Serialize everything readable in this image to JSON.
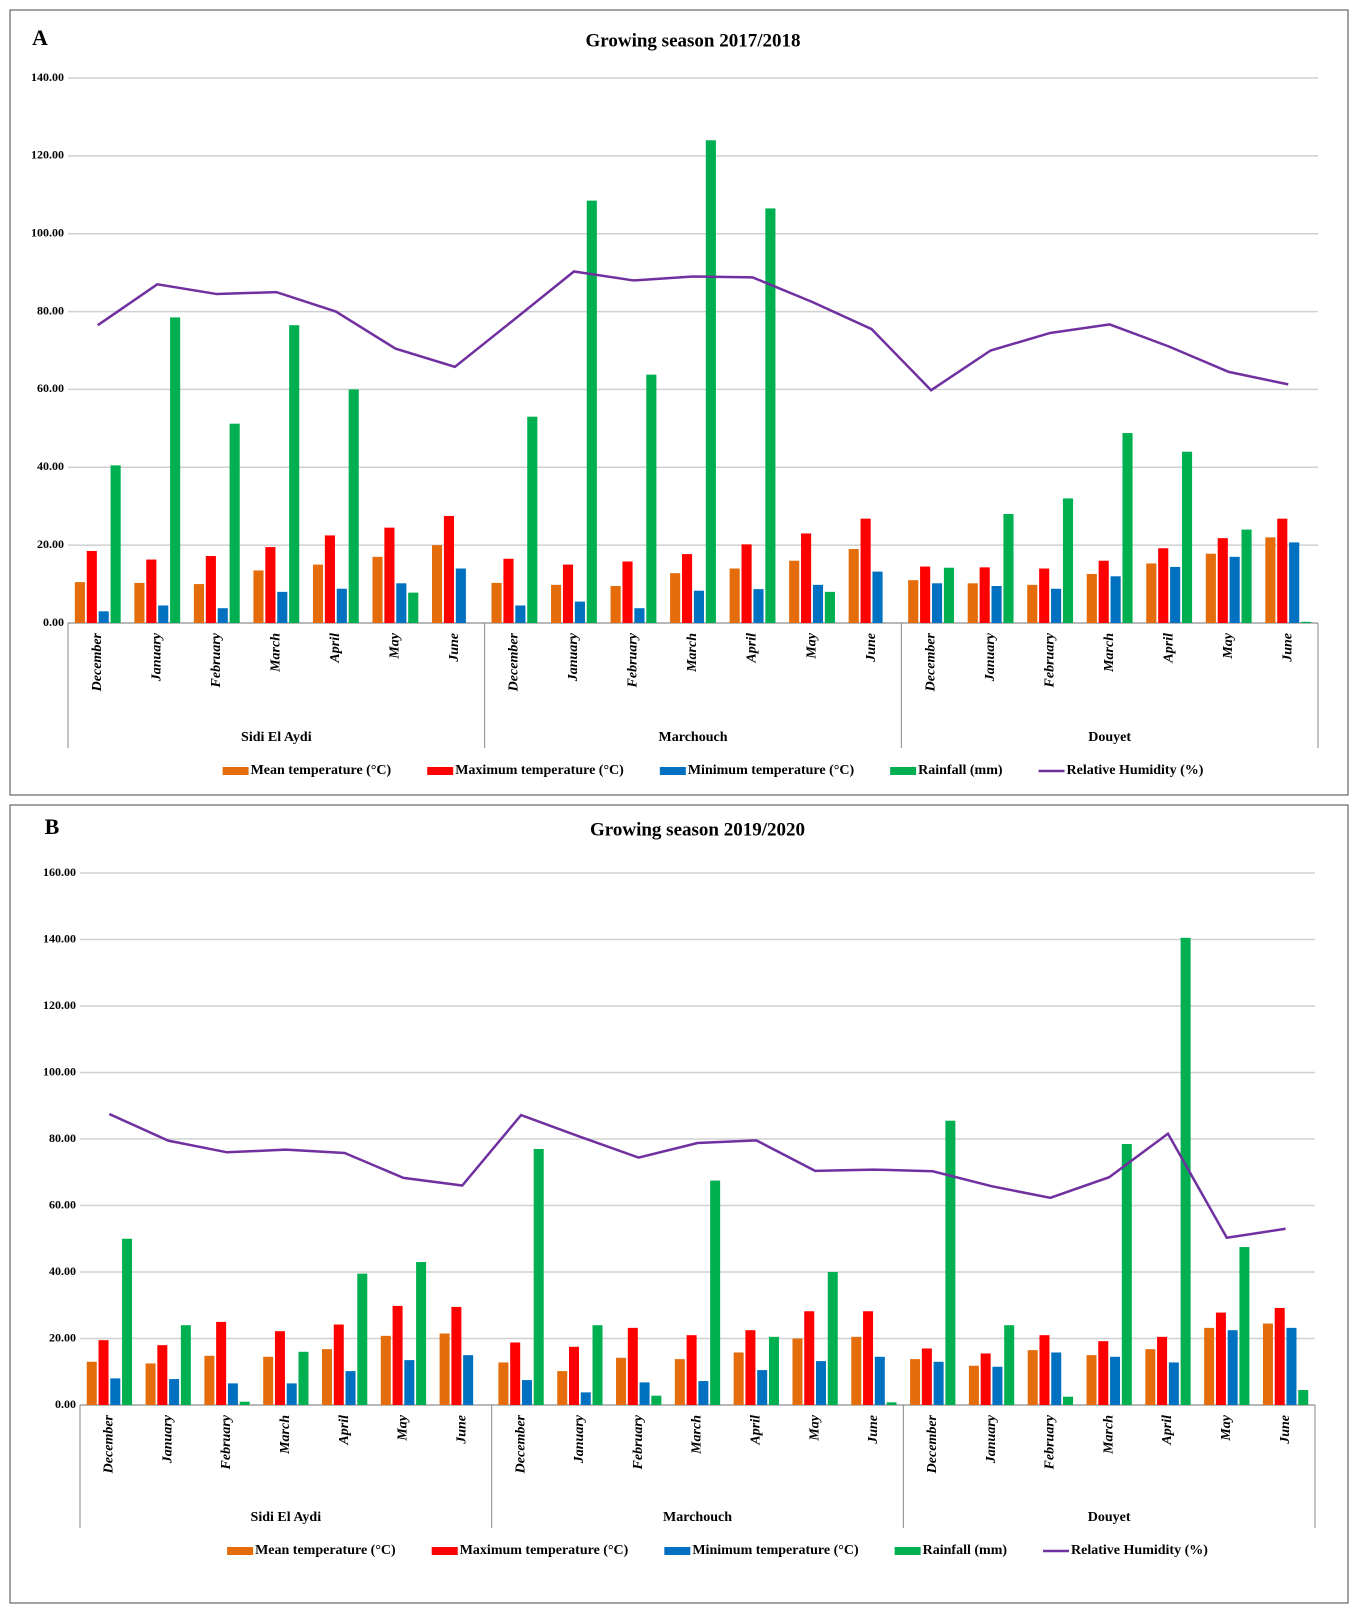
{
  "chart_data": [
    {
      "type": "bar",
      "label": "A",
      "title": "Growing season 2017/2018",
      "categories": [
        "December",
        "January",
        "February",
        "March",
        "April",
        "May",
        "June",
        "December",
        "January",
        "February",
        "March",
        "April",
        "May",
        "June",
        "December",
        "January",
        "February",
        "March",
        "April",
        "May",
        "June"
      ],
      "groups": [
        "Sidi El Aydi",
        "Marchouch",
        "Douyet"
      ],
      "series": [
        {
          "name": "Mean temperature (°C)",
          "color": "#e46c0a",
          "type": "bar",
          "values": [
            10.5,
            10.3,
            10,
            13.5,
            15,
            17,
            20,
            10.3,
            9.8,
            9.5,
            12.8,
            14,
            16,
            19,
            11,
            10.2,
            9.8,
            12.6,
            15.3,
            17.8,
            22
          ]
        },
        {
          "name": "Maximum temperature (°C)",
          "color": "#ff0000",
          "type": "bar",
          "values": [
            18.5,
            16.3,
            17.2,
            19.5,
            22.5,
            24.5,
            27.5,
            16.5,
            15,
            15.8,
            17.7,
            20.2,
            23,
            26.8,
            14.5,
            14.3,
            14,
            16,
            19.2,
            21.8,
            26.8
          ]
        },
        {
          "name": "Minimum temperature (°C)",
          "color": "#0070c0",
          "type": "bar",
          "values": [
            3,
            4.5,
            3.8,
            8,
            8.8,
            10.2,
            14,
            4.5,
            5.5,
            3.8,
            8.3,
            8.7,
            9.8,
            13.2,
            10.2,
            9.5,
            8.8,
            12,
            14.4,
            17,
            20.7
          ]
        },
        {
          "name": "Rainfall (mm)",
          "color": "#00b050",
          "type": "bar",
          "values": [
            40.5,
            78.5,
            51.2,
            76.5,
            60,
            7.8,
            0,
            53,
            108.5,
            63.8,
            124,
            106.5,
            8,
            0,
            14.2,
            28,
            32,
            48.8,
            44,
            24,
            0.3
          ]
        },
        {
          "name": "Relative Humidity (%)",
          "color": "#7030a0",
          "type": "line",
          "values": [
            76.5,
            87,
            84.5,
            85,
            80,
            70.5,
            65.8,
            78,
            90.3,
            88,
            89,
            88.8,
            82.5,
            75.5,
            59.8,
            70,
            74.5,
            76.7,
            71,
            64.5,
            61.3
          ]
        }
      ],
      "ylim": [
        0,
        140
      ],
      "yticks": [
        {
          "value": 0,
          "label": "0.00"
        },
        {
          "value": 20,
          "label": "20.00"
        },
        {
          "value": 40,
          "label": "40.00"
        },
        {
          "value": 60,
          "label": "60.00"
        },
        {
          "value": 80,
          "label": "80.00"
        },
        {
          "value": 100,
          "label": "100.00"
        },
        {
          "value": 120,
          "label": "120.00"
        },
        {
          "value": 140,
          "label": "140.00"
        }
      ],
      "grid": true,
      "legend": "bottom"
    },
    {
      "type": "bar",
      "label": "B",
      "title": "Growing season  2019/2020",
      "categories": [
        "December",
        "January",
        "February",
        "March",
        "April",
        "May",
        "June",
        "December",
        "January",
        "February",
        "March",
        "April",
        "May",
        "June",
        "December",
        "January",
        "February",
        "March",
        "April",
        "May",
        "June"
      ],
      "groups": [
        "Sidi El Aydi",
        "Marchouch",
        "Douyet"
      ],
      "series": [
        {
          "name": "Mean temperature (°C)",
          "color": "#e46c0a",
          "type": "bar",
          "values": [
            13,
            12.5,
            14.8,
            14.5,
            16.8,
            20.8,
            21.5,
            12.8,
            10.2,
            14.2,
            13.8,
            15.8,
            20,
            20.5,
            13.8,
            11.8,
            16.5,
            15,
            16.8,
            23.2,
            24.5
          ]
        },
        {
          "name": "Maximum temperature (°C)",
          "color": "#ff0000",
          "type": "bar",
          "values": [
            19.5,
            18,
            25,
            22.2,
            24.2,
            29.8,
            29.5,
            18.8,
            17.5,
            23.2,
            21,
            22.5,
            28.2,
            28.2,
            17,
            15.5,
            21,
            19.2,
            20.5,
            27.8,
            29.2
          ]
        },
        {
          "name": "Minimum temperature (°C)",
          "color": "#0070c0",
          "type": "bar",
          "values": [
            8,
            7.8,
            6.5,
            6.5,
            10.2,
            13.5,
            15,
            7.5,
            3.8,
            6.8,
            7.2,
            10.5,
            13.2,
            14.5,
            13,
            11.5,
            15.8,
            14.5,
            12.8,
            22.5,
            23.2
          ]
        },
        {
          "name": "Rainfall (mm)",
          "color": "#00b050",
          "type": "bar",
          "values": [
            50,
            24,
            1,
            16,
            39.5,
            43,
            0,
            77,
            24,
            2.8,
            67.5,
            20.5,
            40,
            0.8,
            85.5,
            24,
            2.5,
            78.5,
            140.5,
            47.5,
            4.5
          ]
        },
        {
          "name": "Relative Humidity (%)",
          "color": "#7030a0",
          "type": "line",
          "values": [
            87.5,
            79.5,
            76,
            76.8,
            75.8,
            68.3,
            66,
            87.2,
            80.7,
            74.4,
            78.8,
            79.6,
            70.4,
            70.8,
            70.3,
            65.8,
            62.3,
            68.5,
            81.6,
            50.3,
            53
          ]
        }
      ],
      "ylim": [
        0,
        160
      ],
      "yticks": [
        {
          "value": 0,
          "label": "0.00"
        },
        {
          "value": 20,
          "label": "20.00"
        },
        {
          "value": 40,
          "label": "40.00"
        },
        {
          "value": 60,
          "label": "60.00"
        },
        {
          "value": 80,
          "label": "80.00"
        },
        {
          "value": 100,
          "label": "100.00"
        },
        {
          "value": 120,
          "label": "120.00"
        },
        {
          "value": 140,
          "label": "140.00"
        },
        {
          "value": 160,
          "label": "160.00"
        }
      ],
      "grid": true,
      "legend": "bottom"
    }
  ]
}
